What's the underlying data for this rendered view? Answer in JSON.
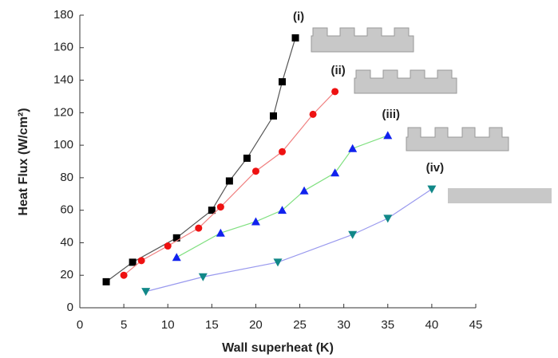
{
  "chart_data": {
    "type": "line",
    "xlabel": "Wall superheat (K)",
    "ylabel": "Heat Flux (W/cm²)",
    "xlim": [
      0,
      45
    ],
    "xticks": [
      0,
      5,
      10,
      15,
      20,
      25,
      30,
      35,
      40,
      45
    ],
    "ylim": [
      0,
      180
    ],
    "yticks": [
      0,
      20,
      40,
      60,
      80,
      100,
      120,
      140,
      160,
      180
    ],
    "series": [
      {
        "name": "(i)",
        "color": "#555555",
        "marker_color": "#000000",
        "marker": "square",
        "x": [
          3,
          6,
          11,
          15,
          17,
          19,
          22,
          23,
          24.5
        ],
        "values": [
          16,
          28,
          43,
          60,
          78,
          92,
          118,
          139,
          166
        ]
      },
      {
        "name": "(ii)",
        "color": "#f08080",
        "marker_color": "#ee1111",
        "marker": "circle",
        "x": [
          5,
          7,
          10,
          13.5,
          16,
          20,
          23,
          26.5,
          29
        ],
        "values": [
          20,
          29,
          38,
          49,
          62,
          84,
          96,
          119,
          133
        ]
      },
      {
        "name": "(iii)",
        "color": "#80e080",
        "marker_color": "#1122ee",
        "marker": "triangle-up",
        "x": [
          11,
          16,
          20,
          23,
          25.5,
          29,
          31,
          35
        ],
        "values": [
          31,
          46,
          53,
          60,
          72,
          83,
          98,
          106
        ]
      },
      {
        "name": "(iv)",
        "color": "#9999ee",
        "marker_color": "#118888",
        "marker": "triangle-down",
        "x": [
          7.5,
          14,
          22.5,
          31,
          35,
          40
        ],
        "values": [
          10,
          19,
          28,
          45,
          55,
          73
        ]
      }
    ]
  }
}
